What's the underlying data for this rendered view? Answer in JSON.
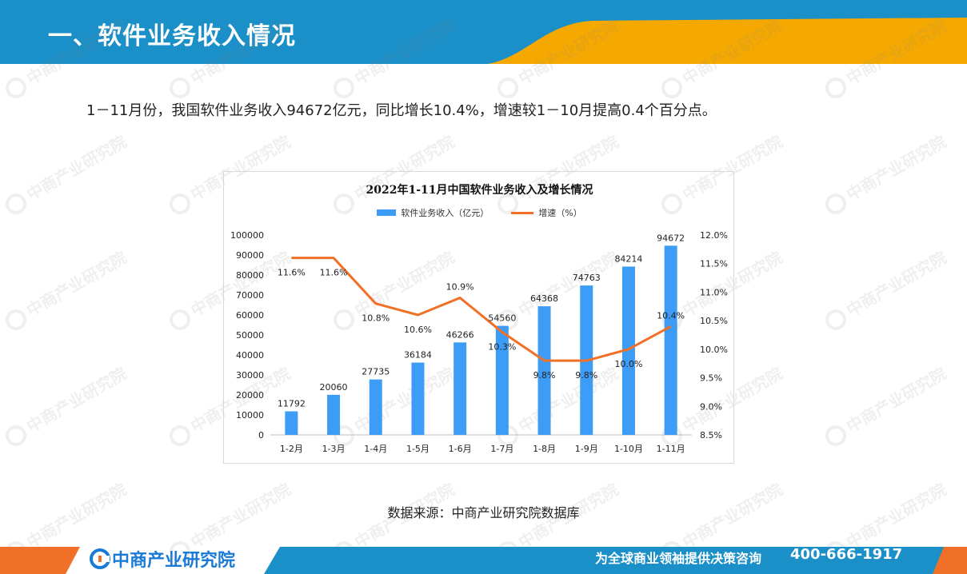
{
  "header": {
    "title": "一、软件业务收入情况"
  },
  "intro_text": "1－11月份，我国软件业务收入94672亿元，同比增长10.4%，增速较1－10月提高0.4个百分点。",
  "watermark_text": "中商产业研究院",
  "colors": {
    "header_blue": "#1a8fc8",
    "header_orange": "#f5a800",
    "bar": "#3d9cf5",
    "line": "#f07027",
    "footer_orange": "#f07027",
    "footer_blue": "#1a8fc8"
  },
  "chart_data": {
    "type": "bar",
    "title": "2022年1-11月中国软件业务收入及增长情况",
    "categories": [
      "1-2月",
      "1-3月",
      "1-4月",
      "1-5月",
      "1-6月",
      "1-7月",
      "1-8月",
      "1-9月",
      "1-10月",
      "1-11月"
    ],
    "series": [
      {
        "name": "软件业务收入（亿元）",
        "type": "bar",
        "axis": "left",
        "values": [
          11792,
          20060,
          27735,
          36184,
          46266,
          54560,
          64368,
          74763,
          84214,
          94672
        ]
      },
      {
        "name": "增速（%）",
        "type": "line",
        "axis": "right",
        "values": [
          11.6,
          11.6,
          10.8,
          10.6,
          10.9,
          10.3,
          9.8,
          9.8,
          10.0,
          10.4
        ],
        "labels": [
          "11.6%",
          "11.6%",
          "10.8%",
          "10.6%",
          "10.9%",
          "10.3%",
          "9.8%",
          "9.8%",
          "10.0%",
          "10.4%"
        ]
      }
    ],
    "y_left": {
      "min": 0,
      "max": 100000,
      "step": 10000,
      "ticks": [
        "0",
        "10000",
        "20000",
        "30000",
        "40000",
        "50000",
        "60000",
        "70000",
        "80000",
        "90000",
        "100000"
      ]
    },
    "y_right": {
      "min": 8.5,
      "max": 12.0,
      "step": 0.5,
      "ticks": [
        "8.5%",
        "9.0%",
        "9.5%",
        "10.0%",
        "10.5%",
        "11.0%",
        "11.5%",
        "12.0%"
      ]
    },
    "legend_position": "top",
    "grid": false
  },
  "source_text": "数据来源：中商产业研究院数据库",
  "footer": {
    "logo_text": "中商产业研究院",
    "slogan": "为全球商业领袖提供决策咨询",
    "phone": "400-666-1917"
  }
}
